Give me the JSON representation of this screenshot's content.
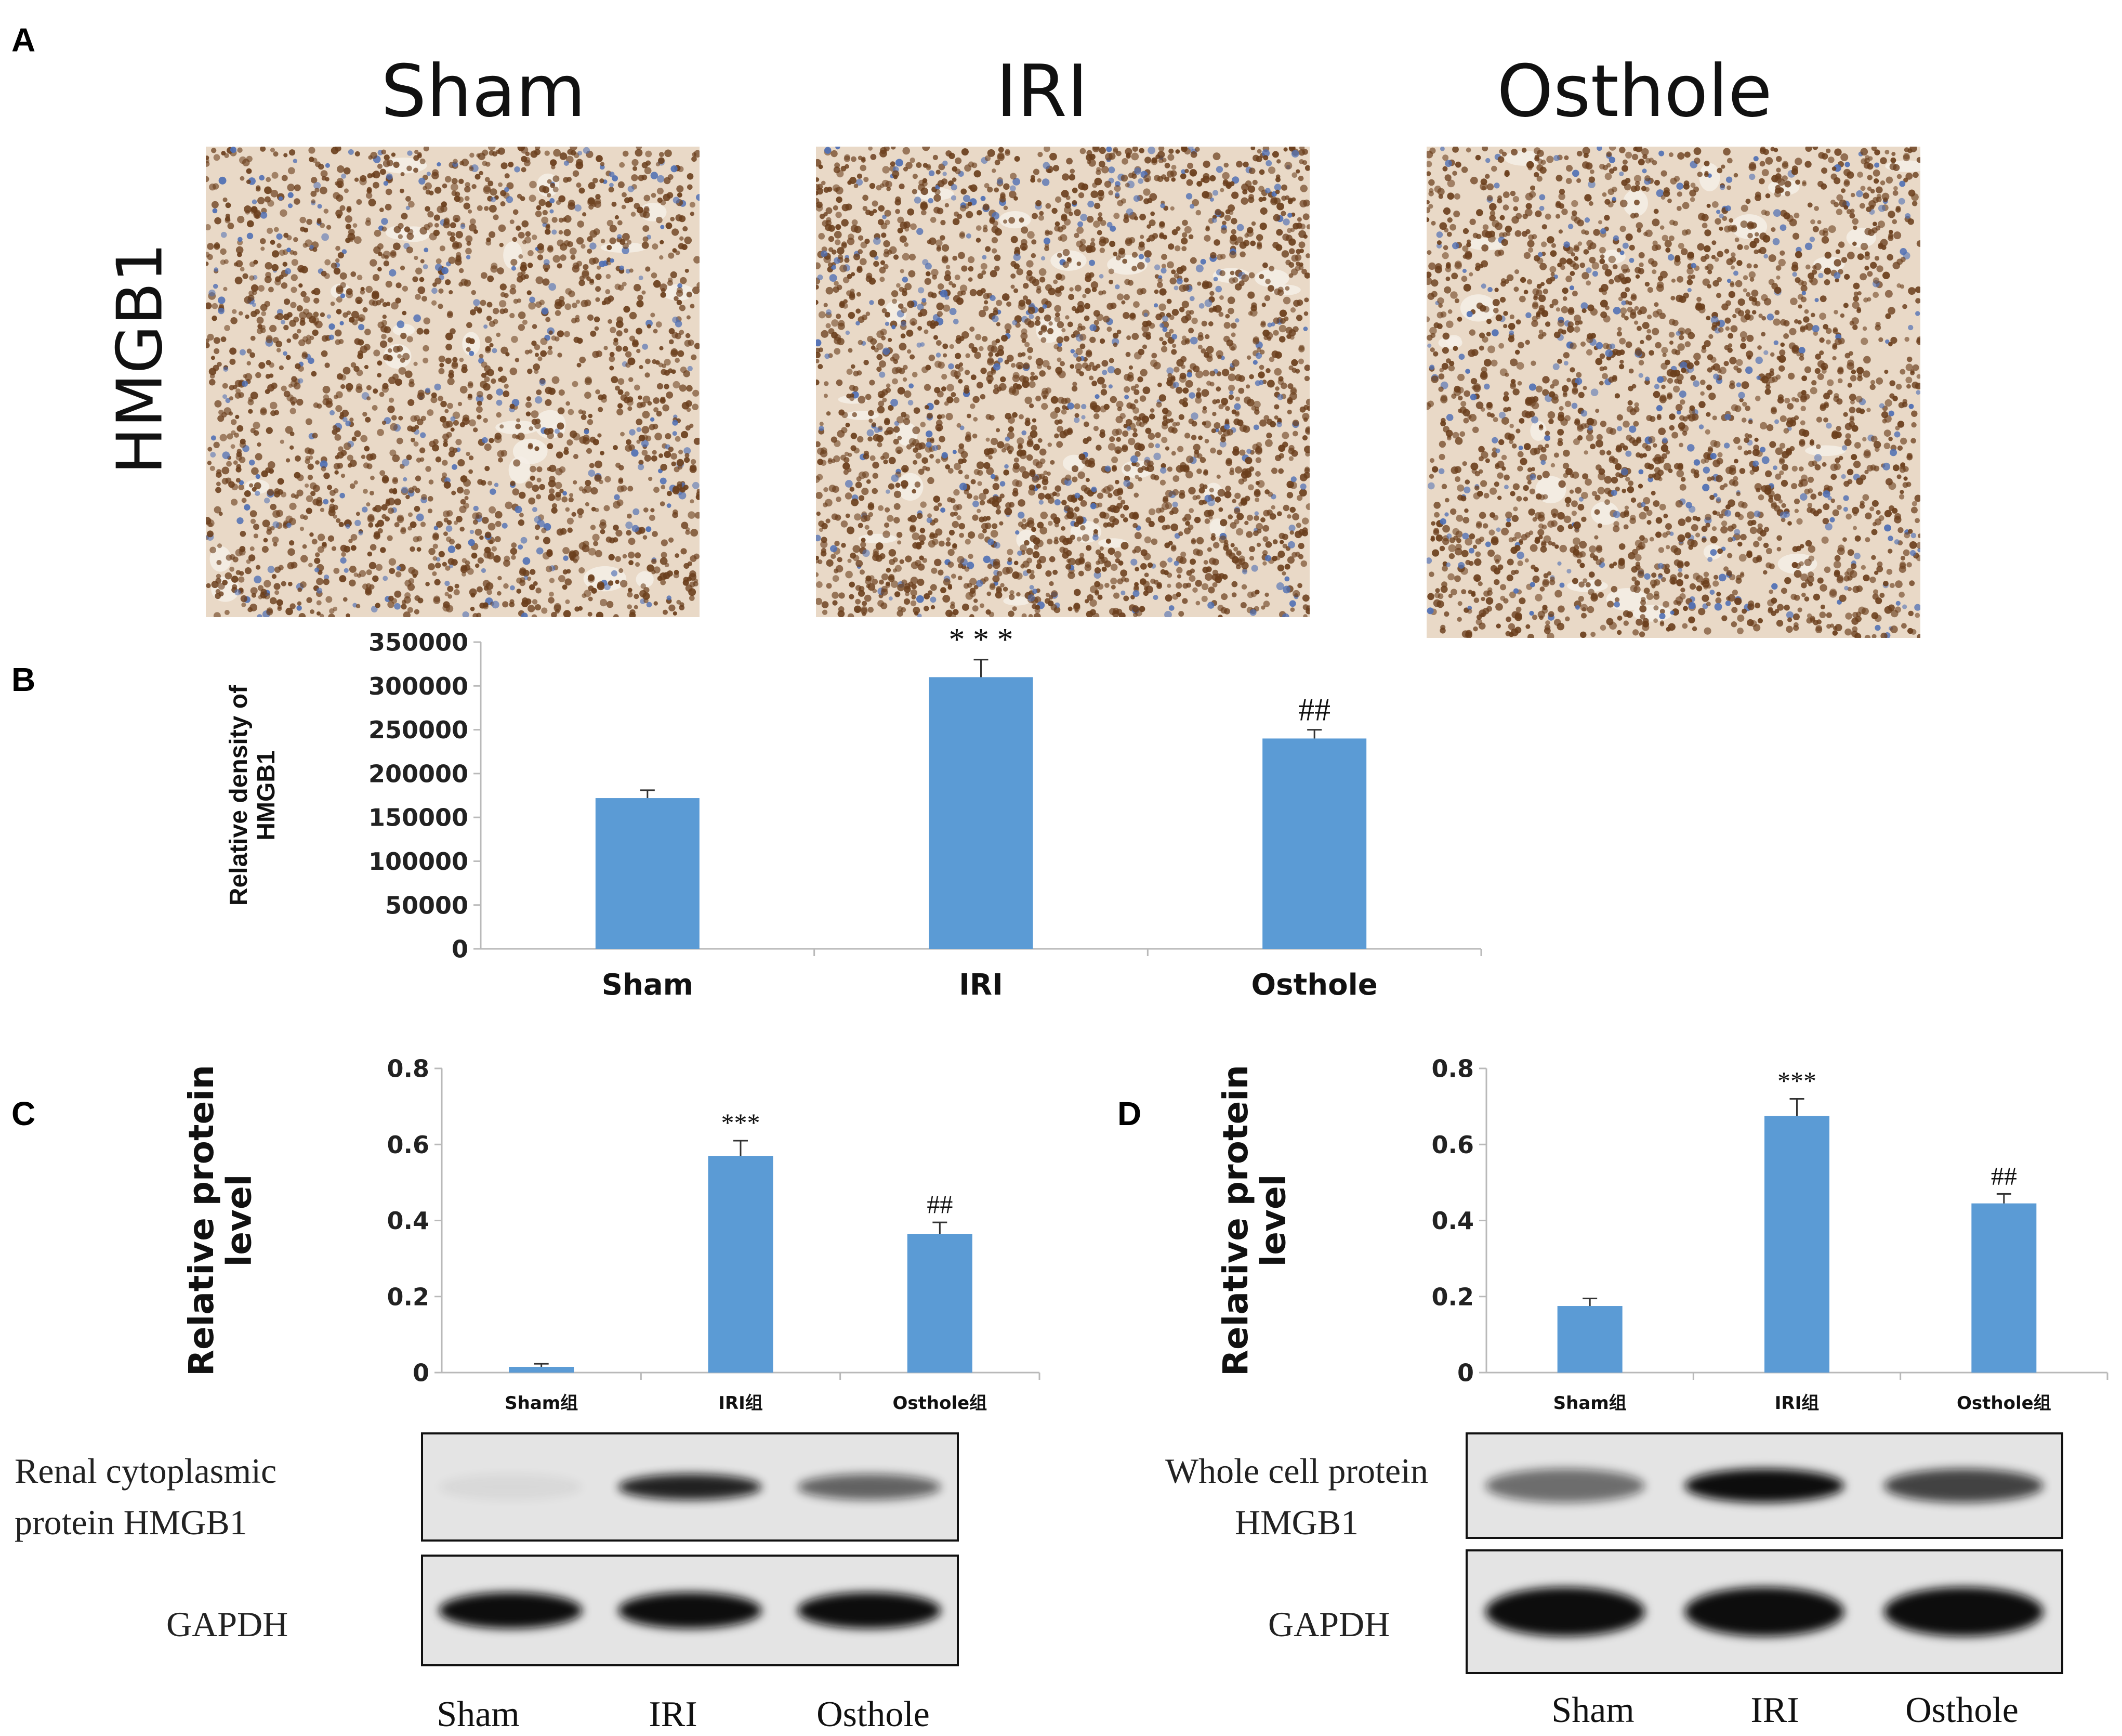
{
  "panel_labels": {
    "a": "A",
    "b": "B",
    "c": "C",
    "d": "D"
  },
  "ihc": {
    "row_label": "HMGB1",
    "groups": [
      "Sham",
      "IRI",
      "Osthole"
    ],
    "colors": {
      "background": "#e9d9c7",
      "nuclei_brown": "#6b3f1d",
      "nuclei_blue": "#4f6fb4"
    },
    "nuclei_density": [
      0.55,
      0.9,
      0.72
    ]
  },
  "chart_data": [
    {
      "panel": "B",
      "type": "bar",
      "categories": [
        "Sham",
        "IRI",
        "Osthole"
      ],
      "values": [
        172000,
        310000,
        240000
      ],
      "errors": [
        9000,
        20000,
        10000
      ],
      "annotations": [
        "",
        "* * *",
        "##"
      ],
      "ylabel": "Relative density of HMGB1",
      "ylim": [
        0,
        350000
      ],
      "yticks": [
        "0",
        "50000",
        "100000",
        "150000",
        "200000",
        "250000",
        "300000",
        "350000"
      ],
      "bar_color": "#5b9bd5",
      "grid": false
    },
    {
      "panel": "C",
      "type": "bar",
      "categories": [
        "Sham组",
        "IRI组",
        "Osthole组"
      ],
      "values": [
        0.015,
        0.57,
        0.365
      ],
      "errors": [
        0.008,
        0.04,
        0.03
      ],
      "annotations": [
        "",
        "***",
        "##"
      ],
      "ylabel": "Relative protein level",
      "ylim": [
        0,
        0.8
      ],
      "yticks": [
        "0",
        "0.2",
        "0.4",
        "0.6",
        "0.8"
      ],
      "bar_color": "#5b9bd5",
      "grid": false
    },
    {
      "panel": "D",
      "type": "bar",
      "categories": [
        "Sham组",
        "IRI组",
        "Osthole组"
      ],
      "values": [
        0.175,
        0.675,
        0.445
      ],
      "errors": [
        0.02,
        0.045,
        0.025
      ],
      "annotations": [
        "",
        "***",
        "##"
      ],
      "ylabel": "Relative protein level",
      "ylim": [
        0,
        0.8
      ],
      "yticks": [
        "0",
        "0.2",
        "0.4",
        "0.6",
        "0.8"
      ],
      "bar_color": "#5b9bd5",
      "grid": false
    }
  ],
  "blots": {
    "c": {
      "target_label": "Renal  cytoplasmic protein HMGB1",
      "control_label": "GAPDH",
      "lanes": [
        "Sham",
        "IRI",
        "Osthole"
      ],
      "target_intensity": [
        0.05,
        0.9,
        0.6
      ],
      "control_intensity": [
        1.0,
        1.0,
        1.0
      ]
    },
    "d": {
      "target_label": "Whole cell protein HMGB1",
      "control_label": "GAPDH",
      "lanes": [
        "Sham",
        "IRI",
        "Osthole"
      ],
      "target_intensity": [
        0.55,
        1.0,
        0.75
      ],
      "control_intensity": [
        1.0,
        1.0,
        1.0
      ]
    }
  }
}
